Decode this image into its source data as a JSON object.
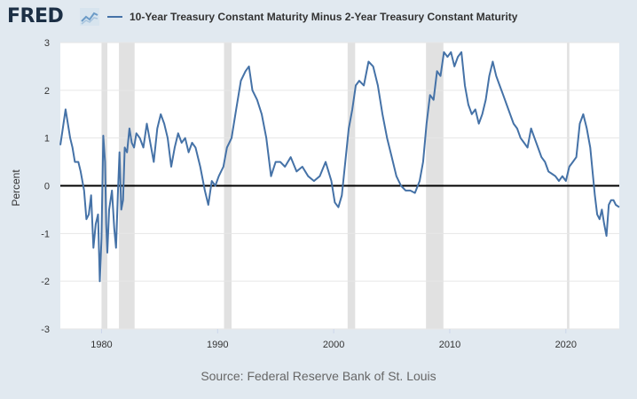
{
  "header": {
    "logo_text": "FRED",
    "logo_icon": "fred-sparkline-logo-icon",
    "legend_label": "10-Year Treasury Constant Maturity Minus 2-Year Treasury Constant Maturity"
  },
  "footer": {
    "source": "Source: Federal Reserve Bank of St. Louis"
  },
  "colors": {
    "background": "#e1e9f0",
    "plot_background": "#ffffff",
    "series": "#4572a7",
    "recession": "#e1e1e1",
    "zero_line": "#000000",
    "logo": "#1c2f45"
  },
  "chart_data": {
    "type": "line",
    "title": "",
    "xlabel": "",
    "ylabel": "Percent",
    "xlim": [
      1976.45,
      2024.6
    ],
    "ylim": [
      -3,
      3
    ],
    "x_ticks": [
      1980,
      1990,
      2000,
      2010,
      2020
    ],
    "x_tick_labels": [
      "1980",
      "1990",
      "2000",
      "2010",
      "2020"
    ],
    "y_ticks": [
      -3,
      -2,
      -1,
      0,
      1,
      2,
      3
    ],
    "y_tick_labels": [
      "-3",
      "-2",
      "-1",
      "0",
      "1",
      "2",
      "3"
    ],
    "grid": "horizontal",
    "legend": "top",
    "reference_line": 0,
    "recessions": [
      [
        1980.0,
        1980.5
      ],
      [
        1981.5,
        1982.85
      ],
      [
        1990.55,
        1991.2
      ],
      [
        2001.2,
        2001.85
      ],
      [
        2007.95,
        2009.45
      ],
      [
        2020.1,
        2020.3
      ]
    ],
    "series": [
      {
        "name": "10-Year Treasury Constant Maturity Minus 2-Year Treasury Constant Maturity",
        "x": [
          1976.45,
          1976.6,
          1976.9,
          1977.1,
          1977.3,
          1977.5,
          1977.7,
          1978.0,
          1978.2,
          1978.5,
          1978.7,
          1978.9,
          1979.1,
          1979.3,
          1979.5,
          1979.7,
          1979.85,
          1980.0,
          1980.15,
          1980.3,
          1980.4,
          1980.5,
          1980.65,
          1980.9,
          1981.1,
          1981.25,
          1981.4,
          1981.55,
          1981.7,
          1981.85,
          1982.0,
          1982.2,
          1982.4,
          1982.6,
          1982.8,
          1983.0,
          1983.3,
          1983.6,
          1983.9,
          1984.2,
          1984.5,
          1984.8,
          1985.1,
          1985.4,
          1985.7,
          1986.0,
          1986.3,
          1986.6,
          1986.9,
          1987.2,
          1987.5,
          1987.8,
          1988.1,
          1988.5,
          1988.9,
          1989.2,
          1989.5,
          1989.8,
          1990.1,
          1990.5,
          1990.8,
          1991.2,
          1991.6,
          1992.0,
          1992.4,
          1992.7,
          1993.0,
          1993.4,
          1993.8,
          1994.2,
          1994.6,
          1995.0,
          1995.4,
          1995.8,
          1996.3,
          1996.8,
          1997.3,
          1997.8,
          1998.3,
          1998.8,
          1999.3,
          1999.8,
          2000.1,
          2000.4,
          2000.7,
          2001.0,
          2001.3,
          2001.6,
          2001.9,
          2002.2,
          2002.6,
          2003.0,
          2003.4,
          2003.8,
          2004.2,
          2004.6,
          2005.0,
          2005.4,
          2005.8,
          2006.2,
          2006.6,
          2007.0,
          2007.4,
          2007.7,
          2008.0,
          2008.3,
          2008.6,
          2008.9,
          2009.2,
          2009.5,
          2009.8,
          2010.1,
          2010.4,
          2010.7,
          2011.0,
          2011.3,
          2011.6,
          2011.9,
          2012.2,
          2012.5,
          2012.8,
          2013.1,
          2013.4,
          2013.7,
          2014.0,
          2014.3,
          2014.6,
          2014.9,
          2015.2,
          2015.5,
          2015.8,
          2016.1,
          2016.4,
          2016.7,
          2017.0,
          2017.3,
          2017.6,
          2017.9,
          2018.2,
          2018.5,
          2018.8,
          2019.1,
          2019.4,
          2019.7,
          2020.0,
          2020.3,
          2020.6,
          2020.9,
          2021.2,
          2021.5,
          2021.8,
          2022.1,
          2022.3,
          2022.5,
          2022.7,
          2022.9,
          2023.1,
          2023.3,
          2023.5,
          2023.7,
          2023.9,
          2024.1,
          2024.3,
          2024.6
        ],
        "values": [
          0.85,
          1.1,
          1.6,
          1.3,
          1.0,
          0.8,
          0.5,
          0.5,
          0.3,
          -0.1,
          -0.7,
          -0.6,
          -0.2,
          -1.3,
          -0.8,
          -0.6,
          -2.0,
          -1.1,
          1.05,
          0.5,
          -0.8,
          -1.4,
          -0.5,
          -0.1,
          -0.9,
          -1.3,
          -0.2,
          0.7,
          -0.5,
          -0.3,
          0.8,
          0.7,
          1.2,
          0.9,
          0.8,
          1.1,
          1.0,
          0.8,
          1.3,
          0.9,
          0.5,
          1.2,
          1.5,
          1.3,
          1.0,
          0.4,
          0.8,
          1.1,
          0.9,
          1.0,
          0.7,
          0.9,
          0.8,
          0.4,
          -0.1,
          -0.4,
          0.1,
          0.0,
          0.2,
          0.4,
          0.8,
          1.0,
          1.6,
          2.2,
          2.4,
          2.5,
          2.0,
          1.8,
          1.5,
          1.0,
          0.2,
          0.5,
          0.5,
          0.4,
          0.6,
          0.3,
          0.4,
          0.2,
          0.1,
          0.2,
          0.5,
          0.1,
          -0.35,
          -0.45,
          -0.2,
          0.5,
          1.2,
          1.6,
          2.1,
          2.2,
          2.1,
          2.6,
          2.5,
          2.1,
          1.5,
          1.0,
          0.6,
          0.2,
          0.0,
          -0.1,
          -0.1,
          -0.15,
          0.1,
          0.5,
          1.3,
          1.9,
          1.8,
          2.4,
          2.3,
          2.8,
          2.7,
          2.8,
          2.5,
          2.7,
          2.8,
          2.1,
          1.7,
          1.5,
          1.6,
          1.3,
          1.5,
          1.8,
          2.3,
          2.6,
          2.3,
          2.1,
          1.9,
          1.7,
          1.5,
          1.3,
          1.2,
          1.0,
          0.9,
          0.8,
          1.2,
          1.0,
          0.8,
          0.6,
          0.5,
          0.3,
          0.25,
          0.2,
          0.1,
          0.2,
          0.1,
          0.4,
          0.5,
          0.6,
          1.3,
          1.5,
          1.2,
          0.8,
          0.3,
          -0.2,
          -0.6,
          -0.7,
          -0.5,
          -0.8,
          -1.05,
          -0.4,
          -0.3,
          -0.3,
          -0.4,
          -0.45
        ]
      }
    ]
  }
}
